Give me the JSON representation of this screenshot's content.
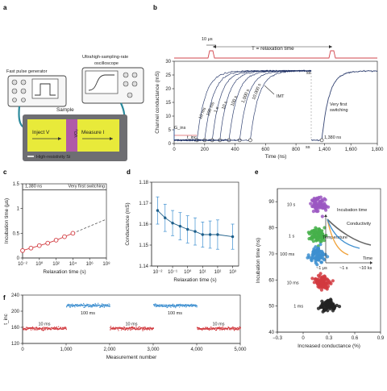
{
  "panel_labels": {
    "a": "a",
    "b": "b",
    "c": "c",
    "d": "d",
    "e": "e",
    "f": "f"
  },
  "panel_a": {
    "generator_label": "Fast pulse generator",
    "scope_label": "Ultrahigh-sampling-rate oscilloscope",
    "sample_label": "Sample",
    "inject_label": "Inject V",
    "measure_label": "Measure I",
    "device_label": "VO₂",
    "substrate_label": "High-resistivity Si",
    "colors": {
      "substrate": "#6e6e72",
      "electrode": "#e8ea3a",
      "device": "#b05aa8",
      "cable": "#2b8a9c"
    }
  },
  "panel_b": {
    "pulse_width_label": "10 μs",
    "relaxation_label": "T = relaxation time",
    "curve_labels": [
      "10 ms",
      "100 ms",
      "1 s",
      "10 s",
      "100 s",
      "1,000 s",
      "10,000 s"
    ],
    "imt_label": "IMT",
    "first_switch_label": "Very first switching",
    "first_switch_time_label": "1,380 ns",
    "g_ins_label": "G_ins",
    "t_inc_label": "t_inc",
    "mark_high": "ss",
    "mark_low": "ss",
    "color_curves": "#1d2f63",
    "color_pulse": "#d2454c"
  },
  "panel_e_inset": {
    "title": "Incubation time",
    "time_axis": "Time",
    "ticks": [
      "~1 μs",
      "~1 s",
      "~10 ks"
    ],
    "lines": [
      {
        "name": "Temperature",
        "color": "#f0a23a"
      },
      {
        "name": "Conductivity",
        "color": "#3d8fd0"
      }
    ]
  },
  "chart_data": [
    {
      "panel": "b",
      "type": "line",
      "xlabel": "Time (ns)",
      "ylabel": "Channel conductance (mS)",
      "xlim": [
        0,
        900
      ],
      "xlim_right": [
        1300,
        1800
      ],
      "ylim": [
        0,
        30
      ],
      "x_ticks": [
        "0",
        "200",
        "400",
        "600",
        "800",
        "1,400",
        "1,600",
        "1,800"
      ],
      "y_ticks": [
        "0",
        "5",
        "10",
        "15",
        "20",
        "25",
        "30"
      ],
      "series": [
        {
          "name": "10 ms",
          "switch_ns": 150
        },
        {
          "name": "100 ms",
          "switch_ns": 200
        },
        {
          "name": "1 s",
          "switch_ns": 250
        },
        {
          "name": "10 s",
          "switch_ns": 300
        },
        {
          "name": "100 s",
          "switch_ns": 360
        },
        {
          "name": "1,000 s",
          "switch_ns": 430
        },
        {
          "name": "10,000 s",
          "switch_ns": 500
        },
        {
          "name": "Very first switching",
          "switch_ns": 1380
        }
      ],
      "plateau_mS": 26.5
    },
    {
      "panel": "c",
      "type": "scatter",
      "xlabel": "Relaxation time (s)",
      "ylabel": "Incubation time (μs)",
      "x_ticks": [
        "10⁻²",
        "10⁰",
        "10²",
        "10⁴",
        "10⁶",
        "10⁸"
      ],
      "y_ticks": [
        "0",
        "0.5",
        "1",
        "1.5"
      ],
      "xlim_log10": [
        -2,
        8
      ],
      "ylim": [
        0,
        1.5
      ],
      "x_log10": [
        -2,
        -1,
        0,
        1,
        2,
        3,
        4
      ],
      "y": [
        0.15,
        0.2,
        0.25,
        0.3,
        0.36,
        0.43,
        0.5
      ],
      "reference_label": "1,380 ns",
      "reference_note": "Very first switching",
      "reference_value": 1.38
    },
    {
      "panel": "d",
      "type": "line",
      "xlabel": "Relaxation time (s)",
      "ylabel": "Conductance (mS)",
      "x_ticks": [
        "10⁻²",
        "10⁻¹",
        "10⁰",
        "10¹",
        "10²",
        "10³"
      ],
      "y_ticks": [
        "1.14",
        "1.15",
        "1.16",
        "1.17",
        "1.18"
      ],
      "xlim_log10": [
        -2.4,
        3.4
      ],
      "ylim": [
        1.14,
        1.18
      ],
      "x_log10": [
        -2,
        -1.5,
        -1,
        -0.5,
        0,
        0.5,
        1,
        1.5,
        2,
        3
      ],
      "y": [
        1.1665,
        1.163,
        1.1605,
        1.159,
        1.1575,
        1.1565,
        1.155,
        1.155,
        1.155,
        1.154
      ],
      "err": [
        0.0065,
        0.0065,
        0.006,
        0.0065,
        0.0065,
        0.0065,
        0.006,
        0.0065,
        0.007,
        0.006
      ]
    },
    {
      "panel": "e",
      "type": "scatter",
      "xlabel": "Increased conductance (%)",
      "ylabel": "Incubation time (ns)",
      "x_ticks": [
        "−0.3",
        "0",
        "0.3",
        "0.6",
        "0.9"
      ],
      "y_ticks": [
        "40",
        "50",
        "60",
        "70",
        "80",
        "90"
      ],
      "xlim": [
        -0.3,
        0.9
      ],
      "ylim": [
        40,
        95
      ],
      "series": [
        {
          "name": "10 s",
          "color": "#9b57c2",
          "cx": 0.18,
          "cy": 89,
          "sx": 0.09,
          "sy": 3.2
        },
        {
          "name": "1 s",
          "color": "#45b04a",
          "cx": 0.17,
          "cy": 77,
          "sx": 0.09,
          "sy": 3.2
        },
        {
          "name": "100 ms",
          "color": "#3d8fd0",
          "cx": 0.17,
          "cy": 70,
          "sx": 0.09,
          "sy": 3.0
        },
        {
          "name": "10 ms",
          "color": "#d23a3f",
          "cx": 0.22,
          "cy": 59,
          "sx": 0.09,
          "sy": 2.6
        },
        {
          "name": "1 ms",
          "color": "#222222",
          "cx": 0.3,
          "cy": 50,
          "sx": 0.1,
          "sy": 2.2
        }
      ]
    },
    {
      "panel": "f",
      "type": "scatter",
      "xlabel": "Measurement number",
      "ylabel": "t_inc",
      "x_ticks": [
        "0",
        "1,000",
        "2,000",
        "3,000",
        "4,000",
        "5,000"
      ],
      "y_ticks": [
        "120",
        "160",
        "200",
        "240"
      ],
      "xlim": [
        0,
        5000
      ],
      "ylim": [
        120,
        240
      ],
      "segments": [
        {
          "label": "10 ms",
          "start": 0,
          "end": 1000,
          "level": 157,
          "color": "#d23a3f"
        },
        {
          "label": "100 ms",
          "start": 1000,
          "end": 2000,
          "level": 214,
          "color": "#3d8fd0"
        },
        {
          "label": "10 ms",
          "start": 2000,
          "end": 3000,
          "level": 157,
          "color": "#d23a3f"
        },
        {
          "label": "100 ms",
          "start": 3000,
          "end": 4000,
          "level": 214,
          "color": "#3d8fd0"
        },
        {
          "label": "10 ms",
          "start": 4000,
          "end": 5000,
          "level": 157,
          "color": "#d23a3f"
        }
      ]
    }
  ]
}
